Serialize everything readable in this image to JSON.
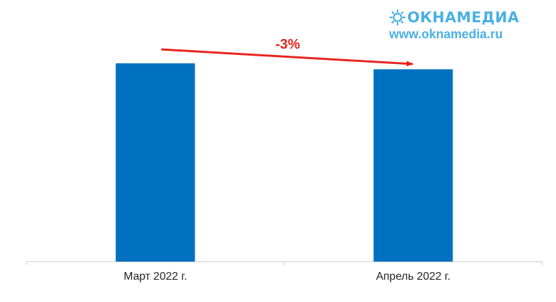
{
  "logo": {
    "brand": "ОКНАМЕДИА",
    "url": "www.oknamedia.ru",
    "brand_color": "#4ab0e4"
  },
  "annotation": {
    "label": "-3%",
    "color": "#e8241c"
  },
  "chart_data": {
    "type": "bar",
    "categories": [
      "Март 2022 г.",
      "Апрель 2022 г."
    ],
    "values": [
      100,
      97
    ],
    "value_unit": "index, March = 100 (relative; only the -3% change is printed)",
    "bar_color": "#0070c0",
    "ylim": [
      0,
      100
    ],
    "title": "",
    "xlabel": "",
    "ylabel": "",
    "grid": false,
    "legend": "none"
  }
}
